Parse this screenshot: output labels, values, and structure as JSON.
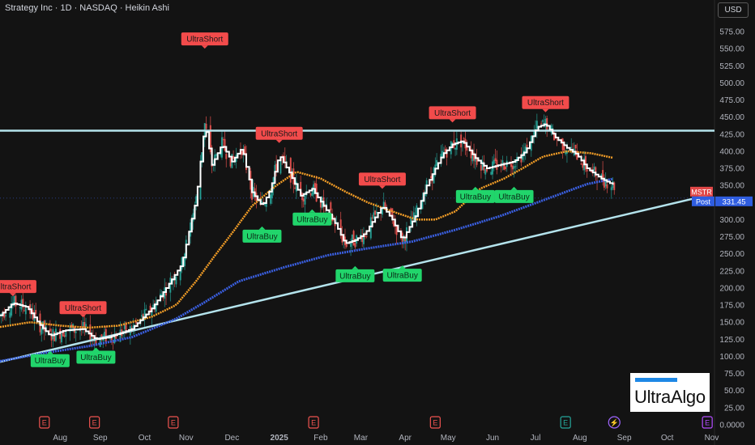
{
  "header": {
    "title": "Strategy Inc · 1D · NASDAQ · Heikin Ashi",
    "currency": "USD"
  },
  "logo": {
    "text": "UltraAlgo"
  },
  "colors": {
    "background": "#131313",
    "price_line": "#ffffff",
    "ma_orange": "#f29d27",
    "ma_blue": "#3a5fe0",
    "trendline": "#b4e3ec",
    "candle_up": "#26a69a",
    "candle_down": "#ef5350",
    "short_label": "#f24b4b",
    "buy_label": "#21d56b"
  },
  "chart_data": {
    "type": "line",
    "y_axis": {
      "ticks": [
        "575.00",
        "550.00",
        "525.00",
        "500.00",
        "475.00",
        "450.00",
        "425.00",
        "400.00",
        "375.00",
        "350.00",
        "325.00",
        "300.00",
        "275.00",
        "250.00",
        "225.00",
        "200.00",
        "175.00",
        "150.00",
        "125.00",
        "100.00",
        "75.00",
        "50.00",
        "25.00",
        "0.0000"
      ],
      "range": [
        0,
        590
      ],
      "position": "right"
    },
    "x_axis": {
      "ticks": [
        "Aug",
        "Sep",
        "Oct",
        "Nov",
        "Dec",
        "2025",
        "Feb",
        "Mar",
        "Apr",
        "May",
        "Jun",
        "Jul",
        "Aug",
        "Sep",
        "Oct",
        "Nov"
      ],
      "bold_ticks": [
        "2025"
      ]
    },
    "current_price": {
      "symbol": "MSTR",
      "session": "Post",
      "value": "331.45"
    },
    "horizontal_resistance": 430,
    "trendline": {
      "start": [
        "2024-07-01",
        92
      ],
      "end": [
        "2025-11-10",
        337
      ]
    },
    "series": [
      {
        "name": "Price",
        "color": "#ffffff",
        "points": [
          [
            "2024-07-01",
            160
          ],
          [
            "2024-07-10",
            178
          ],
          [
            "2024-07-20",
            172
          ],
          [
            "2024-07-28",
            148
          ],
          [
            "2024-08-05",
            130
          ],
          [
            "2024-08-15",
            138
          ],
          [
            "2024-08-28",
            140
          ],
          [
            "2024-09-06",
            125
          ],
          [
            "2024-09-15",
            128
          ],
          [
            "2024-10-01",
            140
          ],
          [
            "2024-10-15",
            170
          ],
          [
            "2024-10-25",
            200
          ],
          [
            "2024-11-05",
            235
          ],
          [
            "2024-11-15",
            330
          ],
          [
            "2024-11-21",
            440
          ],
          [
            "2024-11-26",
            380
          ],
          [
            "2024-12-03",
            410
          ],
          [
            "2024-12-10",
            385
          ],
          [
            "2024-12-17",
            405
          ],
          [
            "2024-12-24",
            340
          ],
          [
            "2024-12-31",
            320
          ],
          [
            "2025-01-06",
            345
          ],
          [
            "2025-01-12",
            395
          ],
          [
            "2025-01-20",
            365
          ],
          [
            "2025-01-27",
            335
          ],
          [
            "2025-02-04",
            345
          ],
          [
            "2025-02-12",
            320
          ],
          [
            "2025-02-20",
            295
          ],
          [
            "2025-02-27",
            265
          ],
          [
            "2025-03-06",
            270
          ],
          [
            "2025-03-13",
            280
          ],
          [
            "2025-03-25",
            320
          ],
          [
            "2025-04-01",
            300
          ],
          [
            "2025-04-08",
            270
          ],
          [
            "2025-04-17",
            305
          ],
          [
            "2025-04-25",
            350
          ],
          [
            "2025-05-06",
            395
          ],
          [
            "2025-05-13",
            410
          ],
          [
            "2025-05-20",
            415
          ],
          [
            "2025-05-29",
            390
          ],
          [
            "2025-06-06",
            375
          ],
          [
            "2025-06-15",
            380
          ],
          [
            "2025-06-25",
            385
          ],
          [
            "2025-07-03",
            400
          ],
          [
            "2025-07-11",
            435
          ],
          [
            "2025-07-17",
            440
          ],
          [
            "2025-07-24",
            420
          ],
          [
            "2025-08-01",
            405
          ],
          [
            "2025-08-08",
            395
          ],
          [
            "2025-08-15",
            375
          ],
          [
            "2025-08-25",
            360
          ],
          [
            "2025-09-03",
            350
          ]
        ]
      },
      {
        "name": "MA1",
        "color": "#f29d27",
        "points": [
          [
            "2024-07-01",
            143
          ],
          [
            "2024-07-22",
            150
          ],
          [
            "2024-08-12",
            145
          ],
          [
            "2024-09-01",
            142
          ],
          [
            "2024-09-22",
            145
          ],
          [
            "2024-10-15",
            158
          ],
          [
            "2024-11-01",
            175
          ],
          [
            "2024-11-15",
            210
          ],
          [
            "2024-11-29",
            250
          ],
          [
            "2024-12-10",
            280
          ],
          [
            "2024-12-24",
            320
          ],
          [
            "2025-01-10",
            350
          ],
          [
            "2025-01-24",
            370
          ],
          [
            "2025-02-10",
            360
          ],
          [
            "2025-02-28",
            340
          ],
          [
            "2025-03-15",
            325
          ],
          [
            "2025-04-01",
            312
          ],
          [
            "2025-04-18",
            300
          ],
          [
            "2025-05-01",
            300
          ],
          [
            "2025-05-15",
            312
          ],
          [
            "2025-06-01",
            345
          ],
          [
            "2025-06-18",
            360
          ],
          [
            "2025-07-01",
            375
          ],
          [
            "2025-07-15",
            392
          ],
          [
            "2025-08-01",
            400
          ],
          [
            "2025-08-18",
            397
          ],
          [
            "2025-09-03",
            390
          ]
        ]
      },
      {
        "name": "MA2",
        "color": "#3a5fe0",
        "points": [
          [
            "2024-07-01",
            93
          ],
          [
            "2024-08-01",
            105
          ],
          [
            "2024-09-01",
            115
          ],
          [
            "2024-10-01",
            128
          ],
          [
            "2024-11-01",
            155
          ],
          [
            "2024-11-20",
            178
          ],
          [
            "2024-12-15",
            210
          ],
          [
            "2025-01-15",
            230
          ],
          [
            "2025-02-15",
            248
          ],
          [
            "2025-03-15",
            258
          ],
          [
            "2025-04-15",
            268
          ],
          [
            "2025-05-15",
            285
          ],
          [
            "2025-06-15",
            305
          ],
          [
            "2025-07-15",
            328
          ],
          [
            "2025-08-15",
            352
          ],
          [
            "2025-09-03",
            360
          ]
        ]
      }
    ],
    "signals": [
      {
        "type": "short",
        "label": "UltraShort",
        "date": "2024-07-10",
        "value": 188
      },
      {
        "type": "short",
        "label": "UltraShort",
        "date": "2024-08-28",
        "value": 157
      },
      {
        "type": "short",
        "label": "UltraShort",
        "date": "2024-11-21",
        "value": 550
      },
      {
        "type": "short",
        "label": "UltraShort",
        "date": "2025-01-12",
        "value": 412
      },
      {
        "type": "short",
        "label": "UltraShort",
        "date": "2025-03-25",
        "value": 345
      },
      {
        "type": "short",
        "label": "UltraShort",
        "date": "2025-05-13",
        "value": 442
      },
      {
        "type": "short",
        "label": "UltraShort",
        "date": "2025-07-17",
        "value": 457
      },
      {
        "type": "buy",
        "label": "UltraBuy",
        "date": "2024-08-05",
        "value": 108
      },
      {
        "type": "buy",
        "label": "UltraBuy",
        "date": "2024-09-06",
        "value": 113
      },
      {
        "type": "buy",
        "label": "UltraBuy",
        "date": "2024-12-31",
        "value": 290
      },
      {
        "type": "buy",
        "label": "UltraBuy",
        "date": "2025-02-04",
        "value": 315
      },
      {
        "type": "buy",
        "label": "UltraBuy",
        "date": "2025-03-06",
        "value": 232
      },
      {
        "type": "buy",
        "label": "UltraBuy",
        "date": "2025-04-08",
        "value": 233
      },
      {
        "type": "buy",
        "label": "UltraBuy",
        "date": "2025-05-29",
        "value": 348
      },
      {
        "type": "buy",
        "label": "UltraBuy",
        "date": "2025-06-25",
        "value": 348
      }
    ],
    "events": [
      {
        "type": "earnings",
        "label": "E",
        "date": "2024-08-01"
      },
      {
        "type": "earnings",
        "label": "E",
        "date": "2024-09-05"
      },
      {
        "type": "earnings",
        "label": "E",
        "date": "2024-10-30"
      },
      {
        "type": "earnings",
        "label": "E",
        "date": "2025-02-05"
      },
      {
        "type": "earnings",
        "label": "E",
        "date": "2025-05-01"
      },
      {
        "type": "earnings",
        "label": "E",
        "date": "2025-07-31"
      },
      {
        "type": "split",
        "label": "⚡",
        "date": "2025-09-03"
      },
      {
        "type": "earnings",
        "label": "E",
        "date": "2025-11-07"
      }
    ]
  }
}
